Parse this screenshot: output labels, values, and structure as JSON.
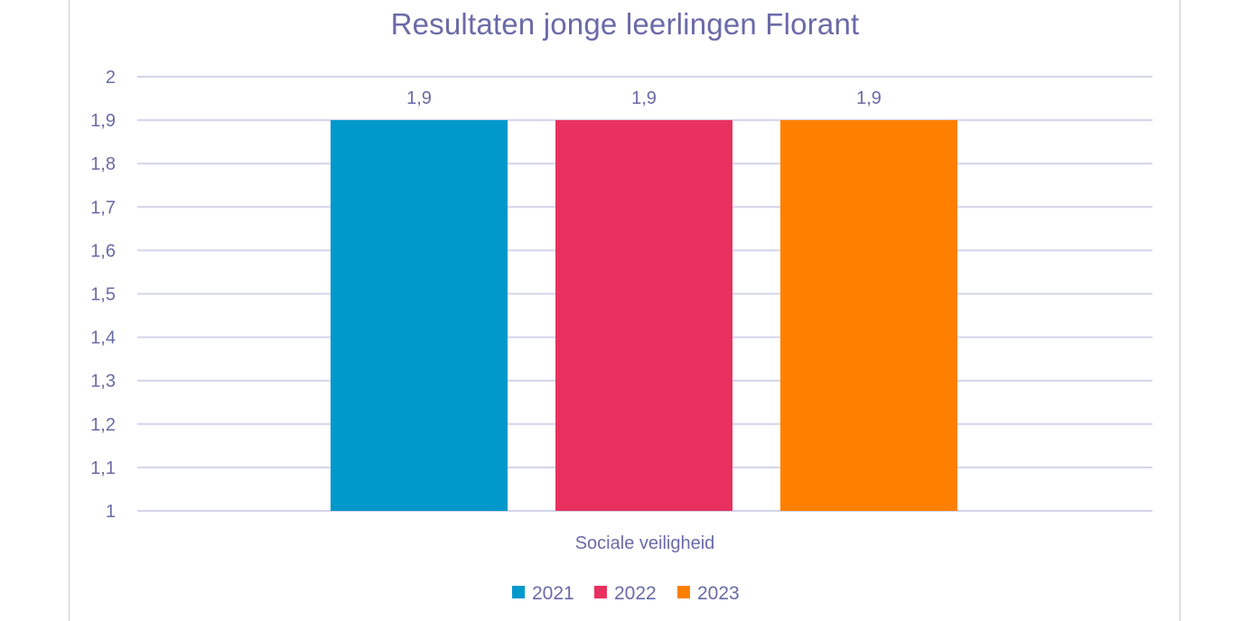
{
  "chart_data": {
    "type": "bar",
    "title": "Resultaten jonge leerlingen Florant",
    "xlabel": "",
    "ylabel": "",
    "categories": [
      "Sociale veiligheid"
    ],
    "series": [
      {
        "name": "2021",
        "values": [
          1.9
        ],
        "color": "#0099cc",
        "label": "1,9"
      },
      {
        "name": "2022",
        "values": [
          1.9
        ],
        "color": "#e8315e",
        "label": "1,9"
      },
      {
        "name": "2023",
        "values": [
          1.9
        ],
        "color": "#ff8000",
        "label": "1,9"
      }
    ],
    "ylim": [
      1,
      2
    ],
    "yticks": [
      {
        "value": 1,
        "label": "1"
      },
      {
        "value": 1.1,
        "label": "1,1"
      },
      {
        "value": 1.2,
        "label": "1,2"
      },
      {
        "value": 1.3,
        "label": "1,3"
      },
      {
        "value": 1.4,
        "label": "1,4"
      },
      {
        "value": 1.5,
        "label": "1,5"
      },
      {
        "value": 1.6,
        "label": "1,6"
      },
      {
        "value": 1.7,
        "label": "1,7"
      },
      {
        "value": 1.8,
        "label": "1,8"
      },
      {
        "value": 1.9,
        "label": "1,9"
      },
      {
        "value": 2,
        "label": "2"
      }
    ],
    "grid": true,
    "legend_position": "bottom",
    "colors": {
      "text": "#6a6aa8",
      "grid": "#d3d3ea"
    }
  }
}
